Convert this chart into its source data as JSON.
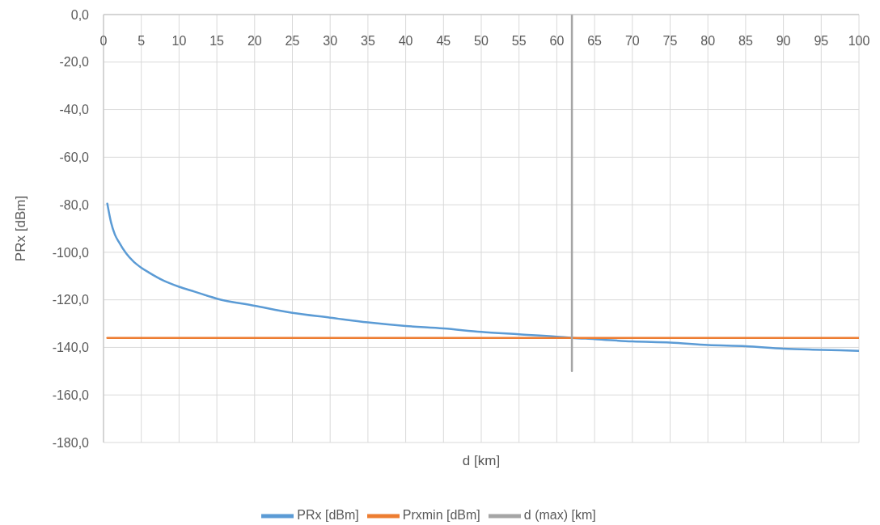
{
  "chart_data": {
    "type": "line",
    "xlabel": "d [km]",
    "ylabel": "PRx [dBm]",
    "xlim": [
      0,
      100
    ],
    "xticks": [
      0,
      5,
      10,
      15,
      20,
      25,
      30,
      35,
      40,
      45,
      50,
      55,
      60,
      65,
      70,
      75,
      80,
      85,
      90,
      95,
      100
    ],
    "ylim": [
      -180,
      0
    ],
    "yticks": [
      {
        "value": 0,
        "label": "0,0"
      },
      {
        "value": -20,
        "label": "-20,0"
      },
      {
        "value": -40,
        "label": "-40,0"
      },
      {
        "value": -60,
        "label": "-60,0"
      },
      {
        "value": -80,
        "label": "-80,0"
      },
      {
        "value": -100,
        "label": "-100,0"
      },
      {
        "value": -120,
        "label": "-120,0"
      },
      {
        "value": -140,
        "label": "-140,0"
      },
      {
        "value": -160,
        "label": "-160,0"
      },
      {
        "value": -180,
        "label": "-180,0"
      }
    ],
    "grid": true,
    "legend": "bottom",
    "series": [
      {
        "name": "PRx [dBm]",
        "color": "#5b9bd5",
        "x": [
          0.5,
          1,
          1.5,
          2,
          3,
          4,
          5,
          6,
          8,
          10,
          12,
          15,
          20,
          25,
          30,
          35,
          40,
          45,
          50,
          55,
          60,
          62,
          65,
          70,
          75,
          80,
          85,
          90,
          95,
          100
        ],
        "values": [
          -79.5,
          -87.5,
          -92.5,
          -95.5,
          -100.5,
          -104,
          -106.5,
          -108.5,
          -112,
          -114.5,
          -116.5,
          -119.5,
          -122.5,
          -125.5,
          -127.5,
          -129.5,
          -131,
          -132,
          -133.5,
          -134.5,
          -135.5,
          -136,
          -136.5,
          -137.5,
          -138,
          -139,
          -139.5,
          -140.5,
          -141,
          -141.5
        ]
      },
      {
        "name": "Prxmin [dBm]",
        "color": "#ed7d31",
        "x": [
          0.5,
          100
        ],
        "values": [
          -136,
          -136
        ]
      },
      {
        "name": "d (max) [km]",
        "color": "#a5a5a5",
        "x": [
          62,
          62
        ],
        "values": [
          0,
          -150
        ]
      }
    ]
  }
}
